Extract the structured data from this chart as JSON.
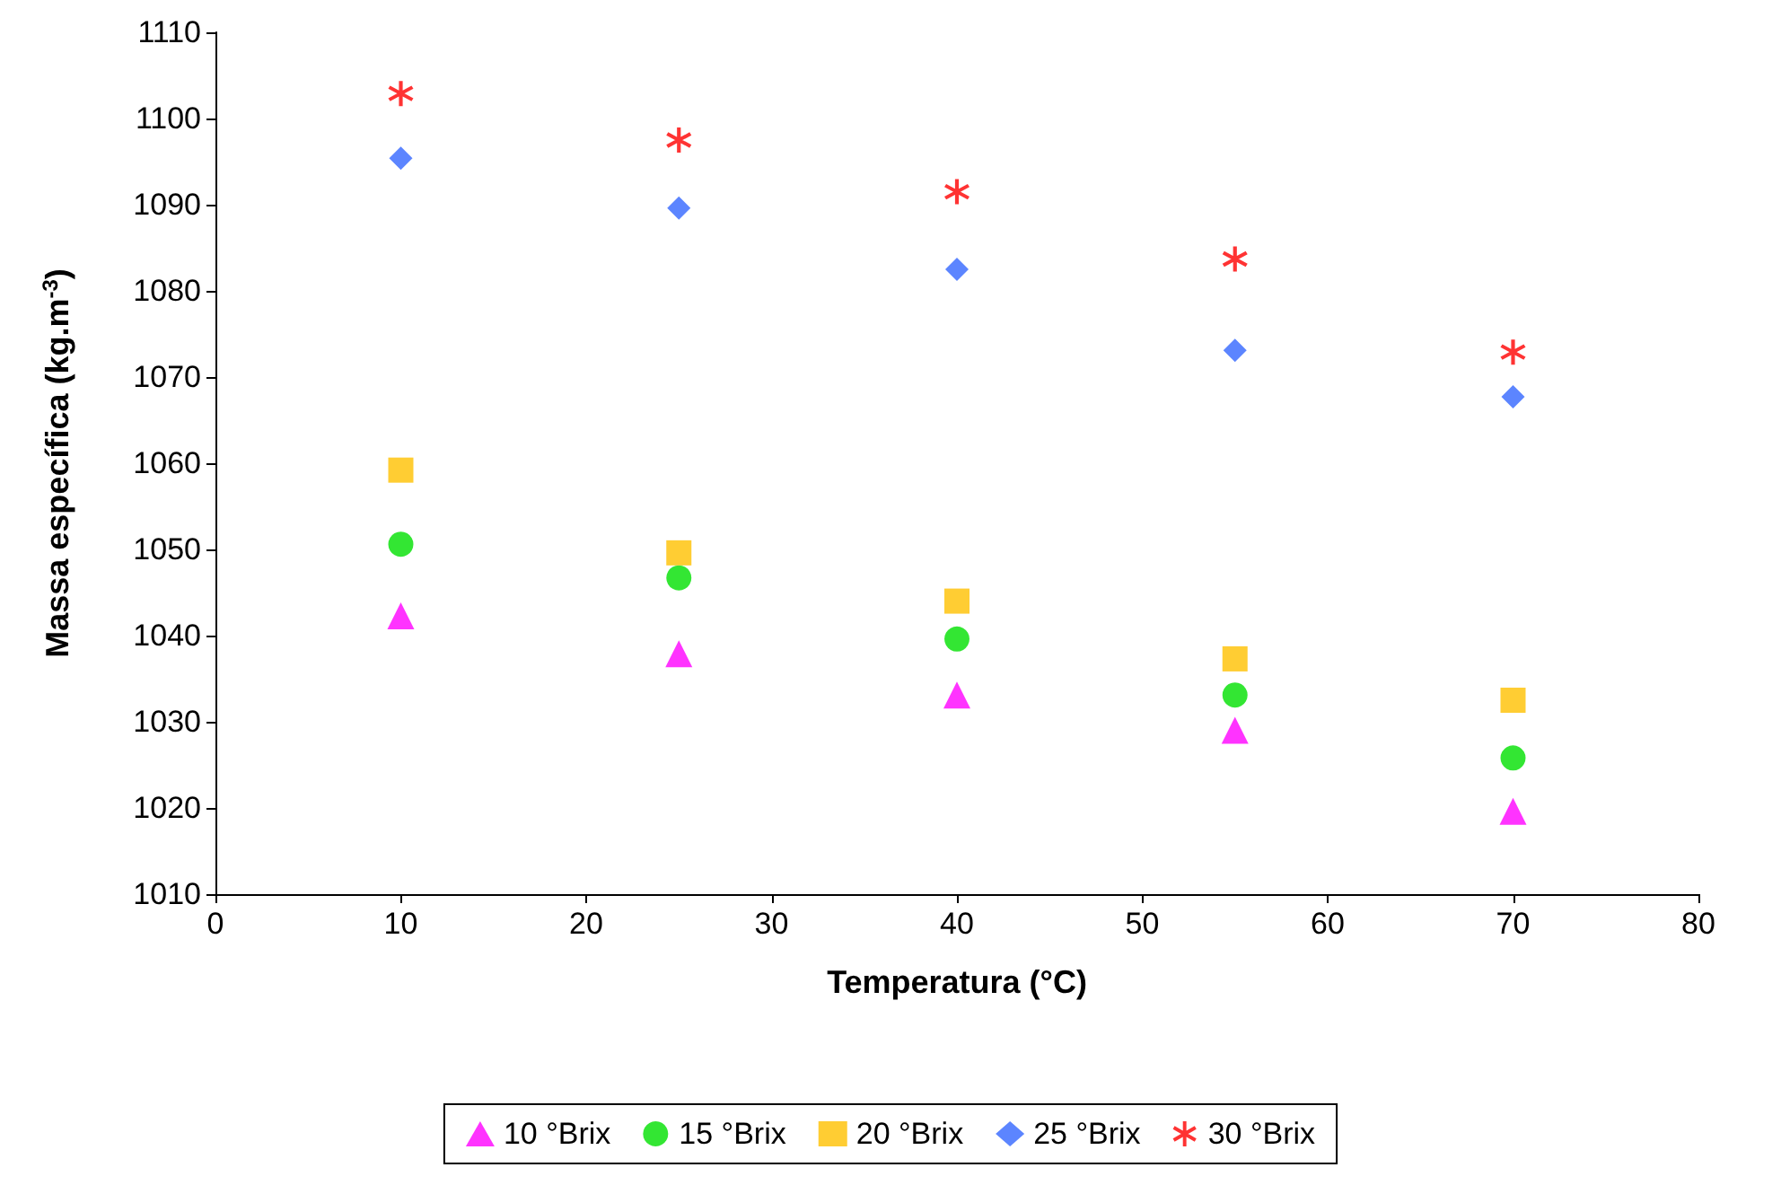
{
  "chart_data": {
    "type": "scatter",
    "xlabel": "Temperatura (°C)",
    "ylabel": "Massa específica (kg.m$^{-3}$)",
    "x": [
      10,
      25,
      40,
      55,
      70
    ],
    "xlim": [
      0,
      80
    ],
    "xticks": [
      0,
      10,
      20,
      30,
      40,
      50,
      60,
      70,
      80
    ],
    "ylim": [
      1010,
      1110
    ],
    "yticks": [
      1010,
      1020,
      1030,
      1040,
      1050,
      1060,
      1070,
      1080,
      1090,
      1100,
      1110
    ],
    "grid": false,
    "legend": "bottom",
    "series": [
      {
        "name": "10 °Brix",
        "color": "#ff00ff",
        "marker": "triangle",
        "values": [
          1042.3,
          1037.9,
          1033.1,
          1029.0,
          1019.6
        ]
      },
      {
        "name": "15 °Brix",
        "color": "#00e000",
        "marker": "circle",
        "values": [
          1050.6,
          1046.7,
          1039.6,
          1033.1,
          1025.8
        ]
      },
      {
        "name": "20 °Brix",
        "color": "#ffc000",
        "marker": "square",
        "values": [
          1059.2,
          1049.6,
          1044.0,
          1037.3,
          1032.5
        ]
      },
      {
        "name": "25 °Brix",
        "color": "#3366ff",
        "marker": "diamond",
        "values": [
          1095.4,
          1089.6,
          1082.5,
          1073.1,
          1067.7
        ]
      },
      {
        "name": "30 °Brix",
        "color": "#ff0000",
        "marker": "cross",
        "values": [
          1102.9,
          1097.5,
          1091.5,
          1083.7,
          1072.9
        ]
      }
    ]
  }
}
